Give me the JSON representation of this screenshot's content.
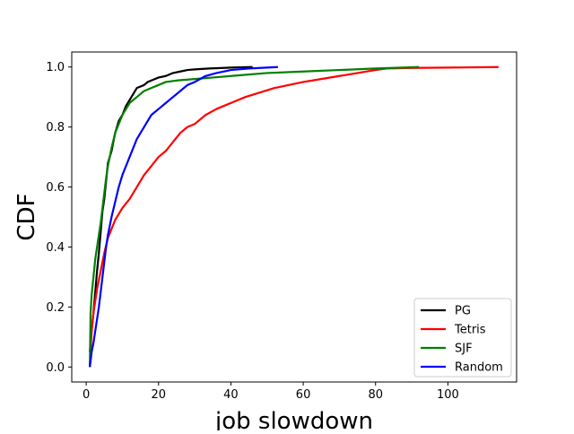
{
  "chart_data": {
    "type": "line",
    "title": "",
    "xlabel": "job slowdown",
    "ylabel": "CDF",
    "xlim": [
      -4,
      119
    ],
    "ylim": [
      -0.05,
      1.05
    ],
    "xticks": [
      0,
      20,
      40,
      60,
      80,
      100
    ],
    "yticks": [
      0.0,
      0.2,
      0.4,
      0.6,
      0.8,
      1.0
    ],
    "grid": false,
    "legend_position": "bottom-right",
    "series": [
      {
        "name": "PG",
        "color": "#000000",
        "x": [
          1,
          1.5,
          2,
          2.5,
          3,
          3.5,
          4,
          4.5,
          5,
          5.5,
          6,
          7,
          8,
          9,
          10,
          11,
          12,
          13,
          14,
          15,
          16,
          17,
          18,
          19,
          20,
          22,
          24,
          26,
          28,
          30,
          34,
          38,
          42,
          46
        ],
        "y": [
          0.05,
          0.12,
          0.18,
          0.25,
          0.32,
          0.38,
          0.45,
          0.52,
          0.56,
          0.62,
          0.68,
          0.72,
          0.78,
          0.82,
          0.84,
          0.87,
          0.89,
          0.91,
          0.93,
          0.935,
          0.94,
          0.95,
          0.955,
          0.96,
          0.965,
          0.97,
          0.98,
          0.985,
          0.99,
          0.992,
          0.995,
          0.997,
          0.999,
          1.0
        ]
      },
      {
        "name": "Tetris",
        "color": "#ff0000",
        "x": [
          1,
          1.5,
          2,
          3,
          4,
          5,
          6,
          7,
          8,
          9,
          10,
          12,
          14,
          16,
          18,
          20,
          22,
          24,
          26,
          28,
          30,
          33,
          36,
          40,
          44,
          48,
          52,
          56,
          60,
          65,
          70,
          75,
          80,
          83,
          90,
          100,
          114
        ],
        "y": [
          0.0,
          0.12,
          0.18,
          0.26,
          0.32,
          0.38,
          0.43,
          0.46,
          0.49,
          0.51,
          0.53,
          0.56,
          0.6,
          0.64,
          0.67,
          0.7,
          0.72,
          0.75,
          0.78,
          0.8,
          0.81,
          0.84,
          0.86,
          0.88,
          0.9,
          0.915,
          0.93,
          0.94,
          0.95,
          0.96,
          0.97,
          0.98,
          0.99,
          0.995,
          0.997,
          0.998,
          1.0
        ]
      },
      {
        "name": "SJF",
        "color": "#008000",
        "x": [
          1,
          1.2,
          1.5,
          2,
          2.5,
          3,
          3.5,
          4,
          4.5,
          5,
          5.5,
          6,
          7,
          8,
          9,
          10,
          11,
          12,
          13,
          14,
          15,
          16,
          18,
          20,
          22,
          25,
          30,
          35,
          40,
          50,
          60,
          70,
          80,
          92
        ],
        "y": [
          0.0,
          0.18,
          0.24,
          0.3,
          0.36,
          0.4,
          0.44,
          0.48,
          0.53,
          0.58,
          0.63,
          0.67,
          0.73,
          0.78,
          0.81,
          0.84,
          0.86,
          0.88,
          0.89,
          0.9,
          0.91,
          0.92,
          0.93,
          0.94,
          0.95,
          0.955,
          0.96,
          0.965,
          0.97,
          0.98,
          0.985,
          0.99,
          0.995,
          1.0
        ]
      },
      {
        "name": "Random",
        "color": "#0000ff",
        "x": [
          1,
          1.5,
          2,
          2.5,
          3,
          3.5,
          4,
          4.5,
          5,
          5.5,
          6,
          7,
          8,
          9,
          10,
          11,
          12,
          13,
          14,
          15,
          16,
          17,
          18,
          20,
          22,
          24,
          26,
          28,
          30,
          33,
          36,
          40,
          45,
          53
        ],
        "y": [
          0.0,
          0.05,
          0.08,
          0.12,
          0.16,
          0.2,
          0.25,
          0.3,
          0.35,
          0.4,
          0.44,
          0.5,
          0.55,
          0.6,
          0.64,
          0.67,
          0.7,
          0.73,
          0.76,
          0.78,
          0.8,
          0.82,
          0.84,
          0.86,
          0.88,
          0.9,
          0.92,
          0.94,
          0.95,
          0.97,
          0.98,
          0.99,
          0.995,
          1.0
        ]
      }
    ]
  }
}
